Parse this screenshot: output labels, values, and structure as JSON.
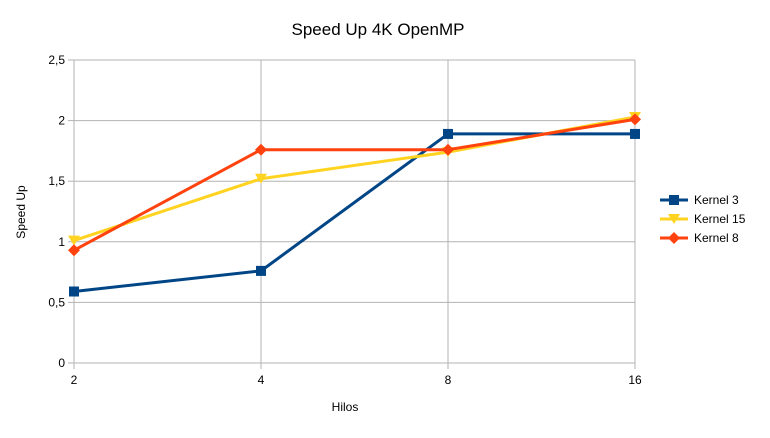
{
  "chart_data": {
    "type": "line",
    "title": "Speed Up 4K OpenMP",
    "xlabel": "Hilos",
    "ylabel": "Speed Up",
    "categories": [
      "2",
      "4",
      "8",
      "16"
    ],
    "ylim": [
      0,
      2.5
    ],
    "yticks": [
      0,
      0.5,
      1,
      1.5,
      2,
      2.5
    ],
    "ytick_labels": [
      "0",
      "0,5",
      "1",
      "1,5",
      "2",
      "2,5"
    ],
    "grid": true,
    "legend_position": "right",
    "series": [
      {
        "name": "Kernel 3",
        "values": [
          0.59,
          0.76,
          1.89,
          1.89
        ],
        "color": "#004586",
        "marker": "square"
      },
      {
        "name": "Kernel 15",
        "values": [
          1.01,
          1.52,
          1.74,
          2.03
        ],
        "color": "#ffd320",
        "marker": "triangle-down"
      },
      {
        "name": "Kernel 8",
        "values": [
          0.93,
          1.76,
          1.76,
          2.01
        ],
        "color": "#ff420e",
        "marker": "diamond"
      }
    ]
  }
}
